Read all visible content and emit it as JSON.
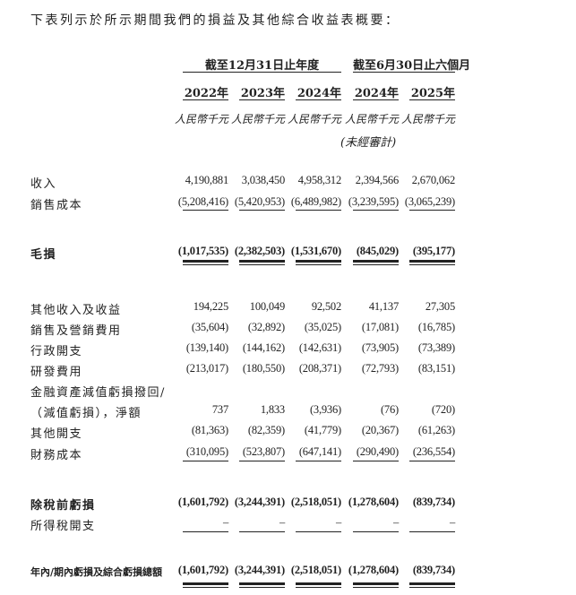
{
  "intro": "下表列示於所示期間我們的損益及其他綜合收益表概要：",
  "header": {
    "group_annual": "截至12月31日止年度",
    "group_half": "截至6月30日止六個月",
    "years": [
      "2022年",
      "2023年",
      "2024年",
      "2024年",
      "2025年"
    ],
    "units": [
      "人民幣千元",
      "人民幣千元",
      "人民幣千元",
      "人民幣千元",
      "人民幣千元"
    ],
    "unaudited_note": "(未經審計)"
  },
  "rows": [
    {
      "label": "收入",
      "values": [
        "4,190,881",
        "3,038,450",
        "4,958,312",
        "2,394,566",
        "2,670,062"
      ]
    },
    {
      "label": "銷售成本",
      "values": [
        "(5,208,416)",
        "(5,420,953)",
        "(6,489,982)",
        "(3,239,595)",
        "(3,065,239)"
      ]
    },
    {
      "label": "毛損",
      "bold": true,
      "values": [
        "(1,017,535)",
        "(2,382,503)",
        "(1,531,670)",
        "(845,029)",
        "(395,177)"
      ]
    },
    {
      "label": "其他收入及收益",
      "values": [
        "194,225",
        "100,049",
        "92,502",
        "41,137",
        "27,305"
      ]
    },
    {
      "label": "銷售及營銷費用",
      "values": [
        "(35,604)",
        "(32,892)",
        "(35,025)",
        "(17,081)",
        "(16,785)"
      ]
    },
    {
      "label": "行政開支",
      "values": [
        "(139,140)",
        "(144,162)",
        "(142,631)",
        "(73,905)",
        "(73,389)"
      ]
    },
    {
      "label": "研發費用",
      "values": [
        "(213,017)",
        "(180,550)",
        "(208,371)",
        "(72,793)",
        "(83,151)"
      ]
    },
    {
      "label": "金融資產減值虧損撥回/",
      "values": [
        "",
        "",
        "",
        "",
        ""
      ]
    },
    {
      "label": "（減值虧損），淨額",
      "values": [
        "737",
        "1,833",
        "(3,936)",
        "(76)",
        "(720)"
      ]
    },
    {
      "label": "其他開支",
      "values": [
        "(81,363)",
        "(82,359)",
        "(41,779)",
        "(20,367)",
        "(61,263)"
      ]
    },
    {
      "label": "財務成本",
      "values": [
        "(310,095)",
        "(523,807)",
        "(647,141)",
        "(290,490)",
        "(236,554)"
      ]
    },
    {
      "label": "除稅前虧損",
      "bold": true,
      "values": [
        "(1,601,792)",
        "(3,244,391)",
        "(2,518,051)",
        "(1,278,604)",
        "(839,734)"
      ]
    },
    {
      "label": "所得稅開支",
      "values": [
        "–",
        "–",
        "–",
        "–",
        "–"
      ]
    },
    {
      "label": "年內/期內虧損及綜合虧損總額",
      "bold": true,
      "values": [
        "(1,601,792)",
        "(3,244,391)",
        "(2,518,051)",
        "(1,278,604)",
        "(839,734)"
      ]
    }
  ]
}
